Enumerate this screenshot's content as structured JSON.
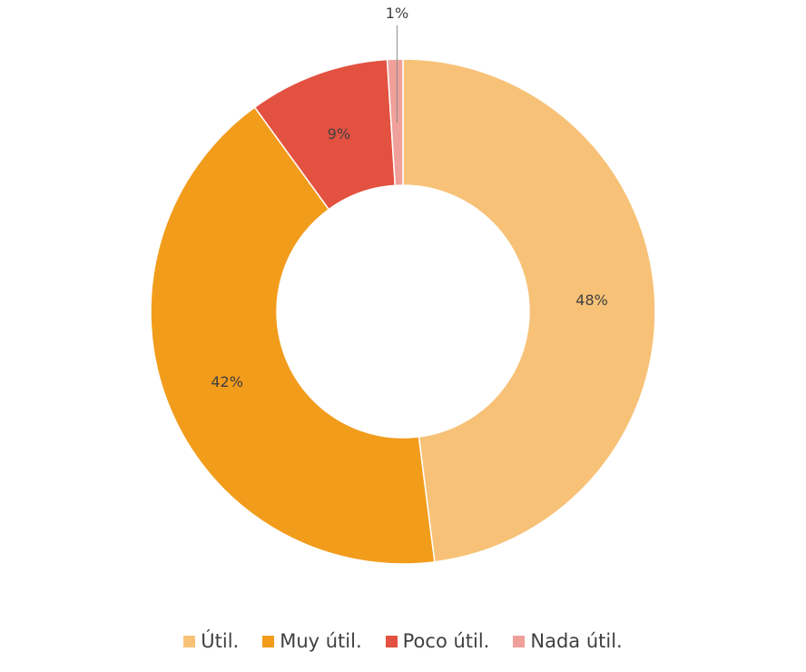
{
  "chart_data": {
    "type": "pie",
    "donut": true,
    "title": "",
    "legend_position": "bottom",
    "slices": [
      {
        "name": "Útil.",
        "value": 48,
        "label": "48%",
        "color": "#F7C277"
      },
      {
        "name": "Muy útil.",
        "value": 42,
        "label": "42%",
        "color": "#F29C1C"
      },
      {
        "name": "Poco útil.",
        "value": 9,
        "label": "9%",
        "color": "#E35141"
      },
      {
        "name": "Nada útil.",
        "value": 1,
        "label": "1%",
        "color": "#F0A09A"
      }
    ]
  }
}
